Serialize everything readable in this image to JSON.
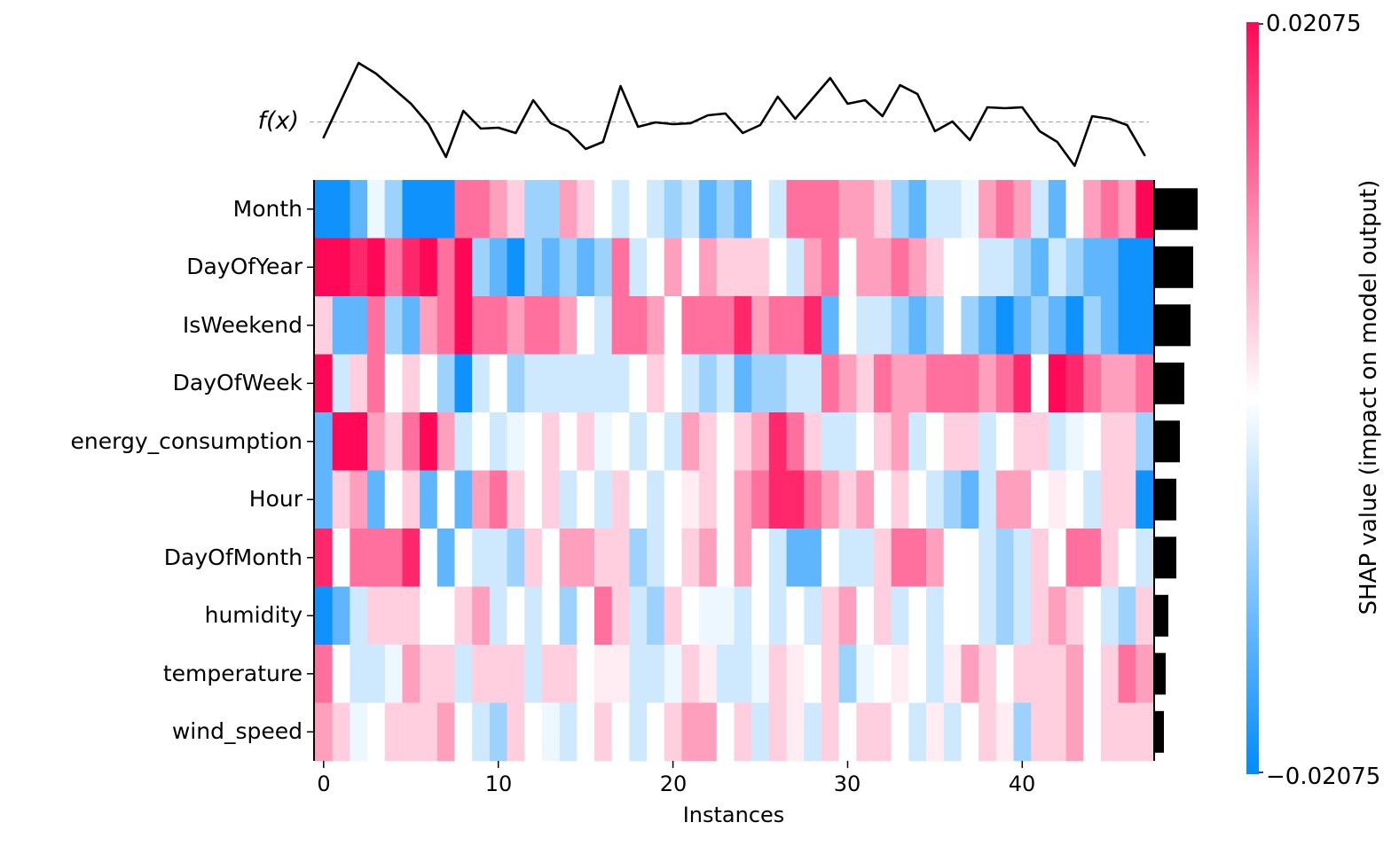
{
  "chart_data": {
    "type": "heatmap",
    "library_style": "shap-heatmap-plot",
    "fx_label": "f(x)",
    "xlabel": "Instances",
    "x_ticks": [
      0,
      10,
      20,
      30,
      40
    ],
    "n_instances": 48,
    "features": [
      "Month",
      "DayOfYear",
      "IsWeekend",
      "DayOfWeek",
      "energy_consumption",
      "Hour",
      "DayOfMonth",
      "humidity",
      "temperature",
      "wind_speed"
    ],
    "shap_range": [
      -0.02075,
      0.02075
    ],
    "colorbar_max_label": "0.02075",
    "colorbar_min_label": "−0.02075",
    "colorbar_title": "SHAP value (impact on model output)",
    "color_positive": "#ff0757",
    "color_negative": "#018bfb",
    "line_color": "#000000",
    "values": [
      [
        -0.0195,
        -0.0195,
        -0.013,
        -0.0015,
        -0.008,
        -0.0195,
        -0.0195,
        -0.0195,
        0.012,
        0.012,
        0.008,
        0.004,
        -0.008,
        -0.008,
        0.008,
        0.004,
        0,
        -0.004,
        0,
        -0.004,
        -0.008,
        -0.004,
        -0.013,
        -0.008,
        -0.013,
        0,
        -0.004,
        0.012,
        0.012,
        0.012,
        0.008,
        0.008,
        0.004,
        -0.008,
        -0.013,
        -0.004,
        -0.004,
        -0.0015,
        0.008,
        0.012,
        0.008,
        -0.004,
        -0.013,
        0,
        0.008,
        0.012,
        0.008,
        0.0207
      ],
      [
        0.0207,
        0.0207,
        0.018,
        0.0207,
        0.012,
        0.018,
        0.0207,
        0.012,
        0.0207,
        -0.008,
        -0.013,
        -0.0195,
        -0.008,
        -0.013,
        -0.008,
        -0.013,
        -0.008,
        0.012,
        -0.004,
        0,
        0.008,
        0,
        0.008,
        0.004,
        0.004,
        0.004,
        0,
        -0.004,
        0.008,
        0.012,
        0,
        0.008,
        0.008,
        0.012,
        0.008,
        0.004,
        0,
        0,
        -0.004,
        -0.004,
        -0.008,
        -0.013,
        -0.004,
        -0.008,
        -0.013,
        -0.013,
        -0.0195,
        -0.0195
      ],
      [
        0.004,
        -0.013,
        -0.013,
        0.012,
        -0.008,
        -0.013,
        0.008,
        0.012,
        0.0207,
        0.012,
        0.012,
        0.008,
        0.012,
        0.012,
        0.008,
        0,
        -0.004,
        0.012,
        0.012,
        0.008,
        0,
        0.012,
        0.012,
        0.012,
        0.018,
        0.008,
        0.012,
        0.012,
        0.018,
        -0.013,
        0,
        -0.004,
        -0.004,
        -0.008,
        -0.013,
        -0.008,
        0,
        -0.008,
        -0.013,
        -0.0195,
        -0.013,
        -0.008,
        -0.013,
        -0.0195,
        -0.008,
        -0.013,
        -0.0195,
        -0.0195
      ],
      [
        0.0207,
        -0.004,
        0.004,
        0.012,
        0,
        0.004,
        0,
        -0.008,
        -0.0195,
        -0.004,
        0,
        -0.008,
        -0.004,
        -0.004,
        -0.004,
        -0.004,
        -0.004,
        -0.004,
        0,
        0.004,
        0,
        -0.004,
        -0.008,
        -0.004,
        -0.013,
        -0.008,
        -0.008,
        -0.004,
        -0.004,
        0.012,
        0.008,
        0.004,
        0.012,
        0.008,
        0.008,
        0.012,
        0.012,
        0.012,
        0.008,
        0.012,
        0.018,
        0,
        0.0207,
        0.018,
        0.012,
        0.008,
        0.008,
        0.012
      ],
      [
        -0.013,
        0.0207,
        0.0207,
        0.008,
        0.004,
        0.012,
        0.0207,
        0.008,
        -0.004,
        0,
        -0.004,
        -0.0015,
        0,
        0.004,
        0,
        0.004,
        -0.0015,
        0,
        -0.004,
        0,
        -0.004,
        0.008,
        0.004,
        0,
        0.004,
        0.008,
        0.018,
        0.012,
        0.004,
        -0.004,
        -0.004,
        0,
        0.004,
        0.008,
        -0.004,
        0,
        0.004,
        0.004,
        -0.004,
        0,
        0.004,
        0.004,
        -0.004,
        -0.0015,
        0,
        0.004,
        0.004,
        -0.008
      ],
      [
        -0.013,
        0.004,
        0.008,
        -0.013,
        0,
        0.004,
        -0.013,
        0,
        -0.013,
        0.008,
        0.012,
        0.004,
        0,
        0.004,
        -0.004,
        0,
        -0.004,
        0.004,
        0,
        -0.004,
        0,
        0.0015,
        0.004,
        0,
        0.008,
        0.012,
        0.018,
        0.018,
        0.012,
        0.008,
        0.004,
        0.008,
        0,
        0.004,
        0,
        -0.004,
        -0.008,
        -0.013,
        -0.004,
        0.008,
        0.008,
        0,
        0.0015,
        0,
        -0.004,
        0.004,
        0.004,
        -0.0195
      ],
      [
        0.018,
        0,
        0.012,
        0.012,
        0.012,
        0.018,
        0,
        -0.013,
        0,
        -0.004,
        -0.004,
        -0.008,
        0.004,
        0,
        0.008,
        0.008,
        0.004,
        0.004,
        -0.008,
        -0.004,
        0,
        0.004,
        0.008,
        0,
        0.008,
        0,
        -0.004,
        -0.013,
        -0.013,
        0,
        -0.004,
        -0.004,
        0.004,
        0.012,
        0.012,
        0.008,
        0,
        0,
        -0.004,
        -0.008,
        -0.004,
        0.004,
        0,
        0.012,
        0.012,
        0.004,
        0,
        -0.004
      ],
      [
        -0.0195,
        -0.013,
        -0.004,
        0.004,
        0.004,
        0.004,
        0,
        0,
        0.004,
        0.008,
        -0.004,
        0,
        -0.004,
        0,
        -0.008,
        0,
        0.012,
        0.004,
        -0.004,
        -0.008,
        0.004,
        0,
        -0.0015,
        -0.0015,
        -0.004,
        0,
        -0.004,
        0,
        -0.004,
        0.004,
        0.008,
        0,
        0.004,
        -0.004,
        0,
        -0.004,
        0,
        0,
        -0.004,
        -0.008,
        -0.004,
        0.004,
        0.008,
        0.004,
        0,
        -0.004,
        -0.008,
        0.004
      ],
      [
        0.012,
        0,
        -0.004,
        -0.004,
        -0.0015,
        0.008,
        0.004,
        0.004,
        -0.004,
        0.004,
        0.004,
        0.004,
        -0.004,
        0.004,
        0.004,
        0,
        0.0015,
        0.0015,
        -0.004,
        -0.004,
        -0.0015,
        0.004,
        0.0015,
        -0.004,
        -0.004,
        -0.0015,
        0.004,
        0.0015,
        0,
        0.004,
        -0.008,
        -0.0015,
        0,
        0.0015,
        0,
        -0.004,
        0.0015,
        0.008,
        0.004,
        0,
        0.004,
        0.004,
        0.004,
        0.008,
        0,
        0.004,
        0.012,
        0.008
      ],
      [
        0.008,
        0.004,
        -0.0015,
        0,
        0.004,
        0.004,
        0.004,
        0.008,
        0,
        -0.004,
        -0.008,
        0.004,
        0,
        -0.0015,
        -0.004,
        0,
        0.004,
        0,
        -0.004,
        0,
        0.004,
        0.008,
        0.008,
        0,
        0.004,
        -0.004,
        0.004,
        0.0015,
        -0.004,
        0.004,
        0,
        0.004,
        0.004,
        0,
        -0.004,
        0.0015,
        -0.004,
        0,
        0.004,
        0.0015,
        -0.008,
        0.004,
        0.004,
        0.008,
        0,
        0.004,
        0.004,
        0.004
      ]
    ],
    "fx_line_offsets": [
      -17.5,
      24.5,
      66.5,
      54.5,
      37.5,
      20.5,
      -2.5,
      -39.5,
      12.5,
      -7.5,
      -6.5,
      -12.5,
      24.5,
      -1.5,
      -10.5,
      -30.5,
      -22.5,
      40.5,
      -5.5,
      -0.5,
      -2.5,
      -1.5,
      7.5,
      9.5,
      -12.5,
      -3.5,
      28.5,
      3.5,
      26.5,
      49.5,
      20.5,
      24.5,
      6.5,
      41.5,
      31.5,
      -10.5,
      0.5,
      -20.5,
      16.5,
      15.5,
      16.5,
      -10.5,
      -22.5,
      -49.5,
      6.5,
      3.5,
      -3.5,
      -37.5
    ],
    "importance_bars": [
      48,
      43,
      40,
      33,
      28,
      24,
      24,
      15,
      12,
      10
    ]
  }
}
